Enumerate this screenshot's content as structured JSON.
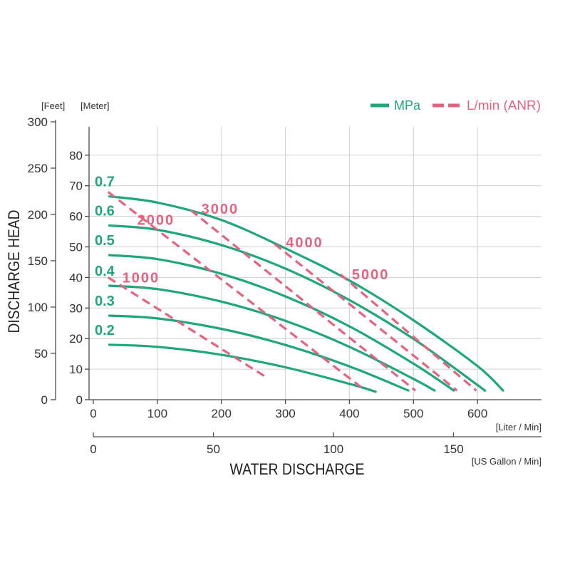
{
  "chart_data": {
    "type": "line",
    "xlabel": "WATER DISCHARGE",
    "ylabel": "DISCHARGE HEAD",
    "x_axis": {
      "label": "[Liter / Min]",
      "ticks": [
        0,
        100,
        200,
        300,
        400,
        500,
        600
      ],
      "range": [
        0,
        700
      ]
    },
    "x_axis_secondary": {
      "label": "[US Gallon / Min]",
      "ticks": [
        0,
        50,
        100,
        150
      ],
      "range": [
        0,
        185
      ]
    },
    "y_axis": {
      "label": "[Meter]",
      "ticks": [
        0,
        10,
        20,
        30,
        40,
        50,
        60,
        70,
        80
      ],
      "range": [
        0,
        89
      ]
    },
    "y_axis_secondary": {
      "label": "[Feet]",
      "ticks": [
        0,
        50,
        100,
        150,
        200,
        250,
        300
      ],
      "range": [
        0,
        300
      ]
    },
    "grid": true,
    "legend": {
      "position": "top-right",
      "entries": [
        {
          "label": "MPa",
          "style": "solid",
          "color": "#1fa77c"
        },
        {
          "label": "L/min (ANR)",
          "style": "dashed",
          "color": "#e4637f"
        }
      ]
    },
    "series": [
      {
        "name": "0.7",
        "group": "MPa",
        "x": [
          25,
          100,
          200,
          300,
          400,
          500,
          600,
          640
        ],
        "y": [
          66.5,
          64.5,
          58.8,
          49.5,
          39,
          26,
          11,
          3
        ]
      },
      {
        "name": "0.6",
        "group": "MPa",
        "x": [
          25,
          100,
          200,
          300,
          400,
          500,
          600,
          611
        ],
        "y": [
          57,
          55.6,
          50.6,
          42.9,
          32.6,
          19.9,
          4.8,
          3
        ]
      },
      {
        "name": "0.5",
        "group": "MPa",
        "x": [
          25,
          100,
          200,
          300,
          400,
          500,
          563
        ],
        "y": [
          47.3,
          46,
          41.2,
          33.8,
          24,
          11.8,
          3
        ]
      },
      {
        "name": "0.4",
        "group": "MPa",
        "x": [
          25,
          100,
          200,
          300,
          400,
          500,
          533
        ],
        "y": [
          37.3,
          36.2,
          32.1,
          25.8,
          17.3,
          6.8,
          3
        ]
      },
      {
        "name": "0.3",
        "group": "MPa",
        "x": [
          25,
          100,
          200,
          300,
          400,
          492
        ],
        "y": [
          27.5,
          26.6,
          23.2,
          17.9,
          10.9,
          3
        ]
      },
      {
        "name": "0.2",
        "group": "MPa",
        "x": [
          25,
          100,
          200,
          300,
          400,
          441
        ],
        "y": [
          18,
          17.3,
          14.7,
          10.6,
          5.2,
          2.6
        ]
      },
      {
        "name": "1000",
        "group": "L/min (ANR)",
        "x": [
          23,
          269
        ],
        "y": [
          40,
          7.5
        ]
      },
      {
        "name": "2000",
        "group": "L/min (ANR)",
        "x": [
          23,
          425
        ],
        "y": [
          68,
          3
        ]
      },
      {
        "name": "3000",
        "group": "L/min (ANR)",
        "x": [
          152,
          503
        ],
        "y": [
          62,
          3
        ]
      },
      {
        "name": "4000",
        "group": "L/min (ANR)",
        "x": [
          283,
          568
        ],
        "y": [
          51,
          3
        ]
      },
      {
        "name": "5000",
        "group": "L/min (ANR)",
        "x": [
          386,
          598
        ],
        "y": [
          41,
          3
        ]
      }
    ]
  }
}
